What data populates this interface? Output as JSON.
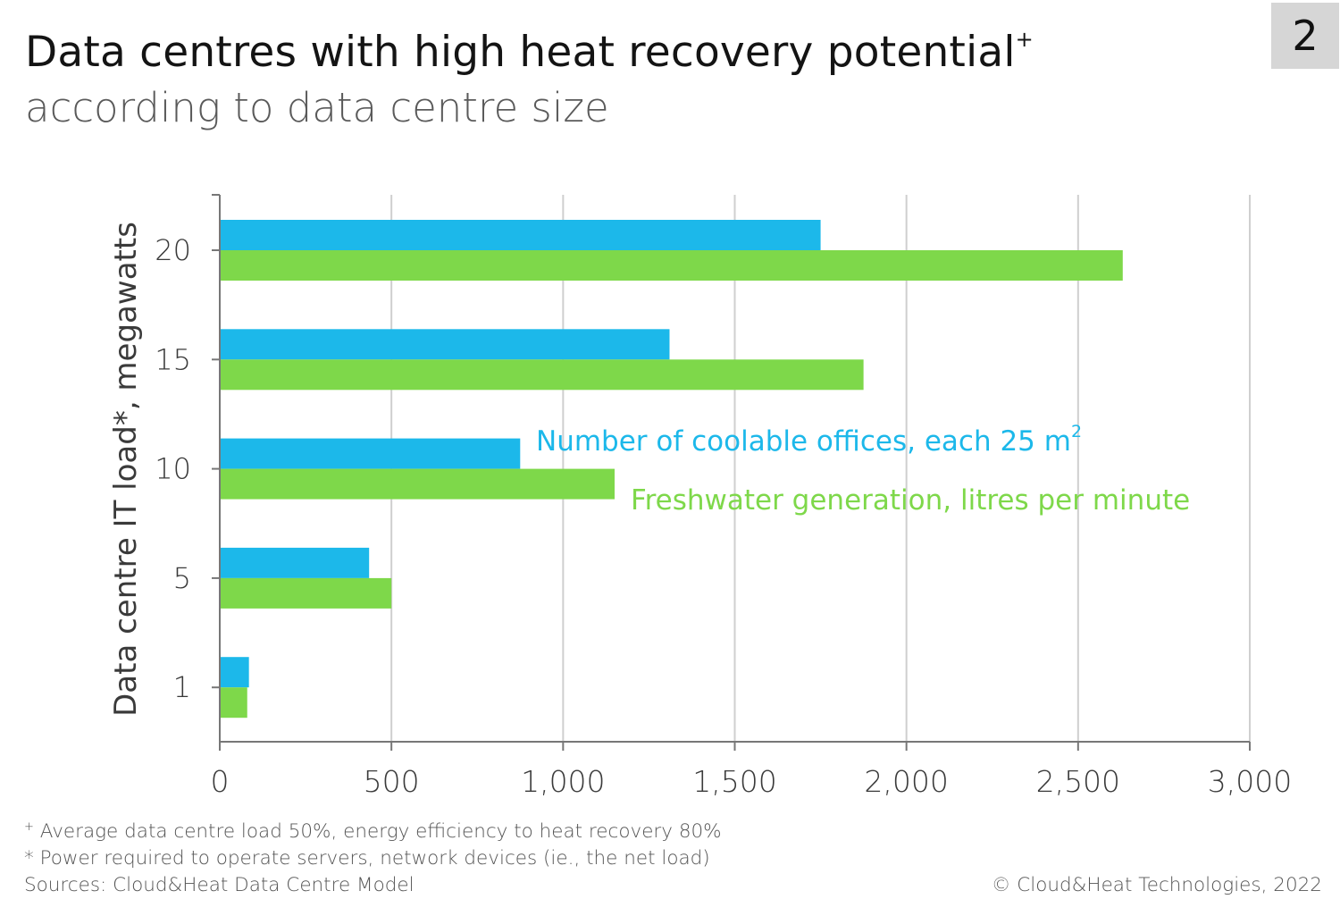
{
  "badge": "2",
  "chart_data": {
    "type": "bar",
    "orientation": "horizontal",
    "title": "Data centres with high heat recovery potential",
    "title_marker": "+",
    "subtitle": "according to data centre size",
    "ylabel": "Data centre IT load*, megawatts",
    "xlabel": "",
    "categories": [
      "20",
      "15",
      "10",
      "5",
      "1"
    ],
    "xlim": [
      0,
      3000
    ],
    "xticks": [
      0,
      500,
      1000,
      1500,
      2000,
      2500,
      3000
    ],
    "xtick_labels": [
      "0",
      "500",
      "1,000",
      "1,500",
      "2,000",
      "2,500",
      "3,000"
    ],
    "grid": "vertical",
    "series": [
      {
        "name_text": "Number of coolable offices, each 25 m",
        "name_sup": "2",
        "color": "#1cb8ea",
        "values": [
          1750,
          1310,
          875,
          435,
          85
        ]
      },
      {
        "name_text": "Freshwater generation, litres per minute",
        "color": "#7ed84a",
        "values": [
          2630,
          1875,
          1150,
          500,
          80
        ]
      }
    ]
  },
  "footnotes": {
    "note1_marker": "+",
    "note1_text": " Average data centre load 50%, energy efficiency to heat recovery 80%",
    "note2": "* Power required to operate servers, network devices  (ie., the net load)",
    "sources": "Sources: Cloud&Heat Data Centre Model"
  },
  "copyright": "© Cloud&Heat Technologies, 2022"
}
